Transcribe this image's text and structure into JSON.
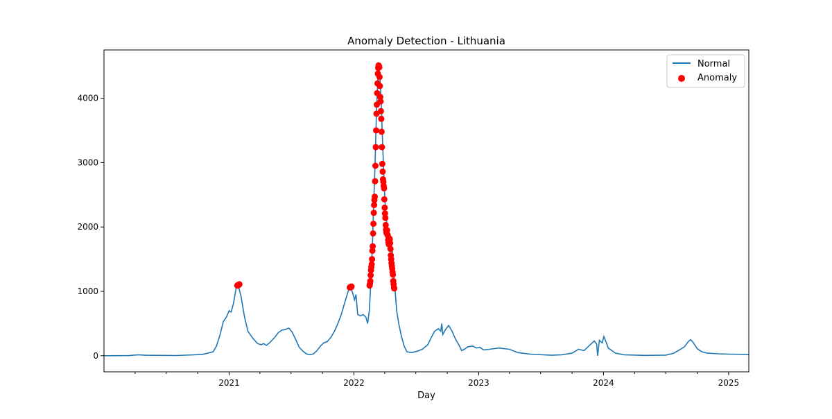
{
  "chart_data": {
    "type": "line",
    "title": "Anomaly Detection - Lithuania",
    "xlabel": "Day",
    "ylabel": "",
    "xlim": [
      "2020-01-01",
      "2025-03-01"
    ],
    "ylim": [
      -250,
      4750
    ],
    "x_ticks": [
      {
        "label": "2021",
        "date": "2021-01-01"
      },
      {
        "label": "2022",
        "date": "2022-01-01"
      },
      {
        "label": "2023",
        "date": "2023-01-01"
      },
      {
        "label": "2024",
        "date": "2024-01-01"
      },
      {
        "label": "2025",
        "date": "2025-01-01"
      }
    ],
    "y_ticks": [
      0,
      1000,
      2000,
      3000,
      4000
    ],
    "legend": {
      "placement": "top-right",
      "entries": [
        "Normal",
        "Anomaly"
      ]
    },
    "grid": false,
    "colors": {
      "line": "#1f77b4",
      "anomaly": "#ff0000"
    },
    "series": [
      {
        "name": "Normal",
        "kind": "line",
        "points": [
          [
            "2020-01-01",
            0
          ],
          [
            "2020-03-15",
            2
          ],
          [
            "2020-04-10",
            15
          ],
          [
            "2020-05-01",
            8
          ],
          [
            "2020-08-01",
            3
          ],
          [
            "2020-10-15",
            20
          ],
          [
            "2020-11-15",
            60
          ],
          [
            "2020-11-25",
            150
          ],
          [
            "2020-12-05",
            320
          ],
          [
            "2020-12-15",
            530
          ],
          [
            "2020-12-25",
            610
          ],
          [
            "2021-01-01",
            700
          ],
          [
            "2021-01-07",
            680
          ],
          [
            "2021-01-14",
            820
          ],
          [
            "2021-01-22",
            1060
          ],
          [
            "2021-01-28",
            1080
          ],
          [
            "2021-02-05",
            920
          ],
          [
            "2021-02-15",
            600
          ],
          [
            "2021-02-25",
            380
          ],
          [
            "2021-03-10",
            280
          ],
          [
            "2021-03-25",
            190
          ],
          [
            "2021-04-05",
            170
          ],
          [
            "2021-04-12",
            190
          ],
          [
            "2021-04-20",
            160
          ],
          [
            "2021-05-01",
            210
          ],
          [
            "2021-05-15",
            290
          ],
          [
            "2021-05-25",
            360
          ],
          [
            "2021-06-05",
            400
          ],
          [
            "2021-06-15",
            410
          ],
          [
            "2021-06-25",
            430
          ],
          [
            "2021-07-05",
            360
          ],
          [
            "2021-07-15",
            250
          ],
          [
            "2021-07-25",
            130
          ],
          [
            "2021-08-05",
            70
          ],
          [
            "2021-08-15",
            30
          ],
          [
            "2021-08-25",
            15
          ],
          [
            "2021-09-05",
            30
          ],
          [
            "2021-09-15",
            80
          ],
          [
            "2021-09-25",
            150
          ],
          [
            "2021-10-05",
            200
          ],
          [
            "2021-10-15",
            220
          ],
          [
            "2021-10-25",
            280
          ],
          [
            "2021-11-05",
            380
          ],
          [
            "2021-11-15",
            500
          ],
          [
            "2021-11-25",
            640
          ],
          [
            "2021-12-05",
            820
          ],
          [
            "2021-12-15",
            1000
          ],
          [
            "2021-12-22",
            1060
          ],
          [
            "2021-12-28",
            980
          ],
          [
            "2022-01-03",
            870
          ],
          [
            "2022-01-07",
            950
          ],
          [
            "2022-01-12",
            640
          ],
          [
            "2022-01-20",
            620
          ],
          [
            "2022-01-28",
            640
          ],
          [
            "2022-02-05",
            600
          ],
          [
            "2022-02-10",
            500
          ],
          [
            "2022-02-15",
            700
          ],
          [
            "2022-02-20",
            1200
          ],
          [
            "2022-02-24",
            1700
          ],
          [
            "2022-02-28",
            2400
          ],
          [
            "2022-03-04",
            3000
          ],
          [
            "2022-03-08",
            3800
          ],
          [
            "2022-03-12",
            4300
          ],
          [
            "2022-03-15",
            4500
          ],
          [
            "2022-03-18",
            4350
          ],
          [
            "2022-03-22",
            3900
          ],
          [
            "2022-03-26",
            3300
          ],
          [
            "2022-03-30",
            2700
          ],
          [
            "2022-04-03",
            2300
          ],
          [
            "2022-04-08",
            2000
          ],
          [
            "2022-04-13",
            1900
          ],
          [
            "2022-04-18",
            1800
          ],
          [
            "2022-04-23",
            1650
          ],
          [
            "2022-04-27",
            1300
          ],
          [
            "2022-05-01",
            1050
          ],
          [
            "2022-05-06",
            700
          ],
          [
            "2022-05-12",
            500
          ],
          [
            "2022-05-20",
            300
          ],
          [
            "2022-05-28",
            150
          ],
          [
            "2022-06-05",
            60
          ],
          [
            "2022-06-20",
            50
          ],
          [
            "2022-07-05",
            70
          ],
          [
            "2022-07-20",
            100
          ],
          [
            "2022-08-05",
            170
          ],
          [
            "2022-08-15",
            280
          ],
          [
            "2022-08-25",
            380
          ],
          [
            "2022-09-05",
            420
          ],
          [
            "2022-09-12",
            380
          ],
          [
            "2022-09-15",
            500
          ],
          [
            "2022-09-18",
            330
          ],
          [
            "2022-09-25",
            400
          ],
          [
            "2022-10-05",
            470
          ],
          [
            "2022-10-15",
            380
          ],
          [
            "2022-10-25",
            260
          ],
          [
            "2022-11-05",
            160
          ],
          [
            "2022-11-12",
            80
          ],
          [
            "2022-11-20",
            100
          ],
          [
            "2022-12-01",
            140
          ],
          [
            "2022-12-15",
            150
          ],
          [
            "2022-12-25",
            120
          ],
          [
            "2023-01-05",
            130
          ],
          [
            "2023-01-15",
            90
          ],
          [
            "2023-02-01",
            100
          ],
          [
            "2023-03-01",
            120
          ],
          [
            "2023-04-01",
            100
          ],
          [
            "2023-04-25",
            50
          ],
          [
            "2023-06-01",
            25
          ],
          [
            "2023-08-01",
            8
          ],
          [
            "2023-09-01",
            15
          ],
          [
            "2023-10-01",
            40
          ],
          [
            "2023-10-20",
            100
          ],
          [
            "2023-11-05",
            80
          ],
          [
            "2023-11-15",
            130
          ],
          [
            "2023-11-25",
            180
          ],
          [
            "2023-12-05",
            230
          ],
          [
            "2023-12-12",
            180
          ],
          [
            "2023-12-15",
            0
          ],
          [
            "2023-12-20",
            240
          ],
          [
            "2023-12-28",
            200
          ],
          [
            "2024-01-02",
            300
          ],
          [
            "2024-01-08",
            220
          ],
          [
            "2024-01-15",
            120
          ],
          [
            "2024-02-05",
            40
          ],
          [
            "2024-03-01",
            15
          ],
          [
            "2024-05-01",
            5
          ],
          [
            "2024-07-01",
            10
          ],
          [
            "2024-07-25",
            40
          ],
          [
            "2024-08-10",
            90
          ],
          [
            "2024-08-25",
            140
          ],
          [
            "2024-09-05",
            220
          ],
          [
            "2024-09-12",
            250
          ],
          [
            "2024-09-20",
            200
          ],
          [
            "2024-10-01",
            110
          ],
          [
            "2024-10-15",
            60
          ],
          [
            "2024-11-01",
            40
          ],
          [
            "2024-12-01",
            30
          ],
          [
            "2025-01-01",
            25
          ],
          [
            "2025-03-01",
            20
          ]
        ]
      },
      {
        "name": "Anomaly",
        "kind": "scatter",
        "points": [
          [
            "2021-01-25",
            1090
          ],
          [
            "2021-01-27",
            1100
          ],
          [
            "2021-01-28",
            1095
          ],
          [
            "2021-01-30",
            1105
          ],
          [
            "2021-01-31",
            1110
          ],
          [
            "2021-12-20",
            1060
          ],
          [
            "2021-12-22",
            1070
          ],
          [
            "2021-12-24",
            1065
          ],
          [
            "2021-12-25",
            1075
          ],
          [
            "2022-02-16",
            1090
          ],
          [
            "2022-02-17",
            1120
          ],
          [
            "2022-02-18",
            1160
          ],
          [
            "2022-02-19",
            1250
          ],
          [
            "2022-02-20",
            1330
          ],
          [
            "2022-02-21",
            1380
          ],
          [
            "2022-02-22",
            1420
          ],
          [
            "2022-02-23",
            1500
          ],
          [
            "2022-02-24",
            1630
          ],
          [
            "2022-02-25",
            1700
          ],
          [
            "2022-02-26",
            1900
          ],
          [
            "2022-02-27",
            2050
          ],
          [
            "2022-02-28",
            2220
          ],
          [
            "2022-03-01",
            2340
          ],
          [
            "2022-03-02",
            2420
          ],
          [
            "2022-03-03",
            2470
          ],
          [
            "2022-03-04",
            2710
          ],
          [
            "2022-03-05",
            2950
          ],
          [
            "2022-03-06",
            3240
          ],
          [
            "2022-03-07",
            3500
          ],
          [
            "2022-03-08",
            3760
          ],
          [
            "2022-03-09",
            3900
          ],
          [
            "2022-03-10",
            4080
          ],
          [
            "2022-03-11",
            4230
          ],
          [
            "2022-03-12",
            4380
          ],
          [
            "2022-03-13",
            4470
          ],
          [
            "2022-03-14",
            4510
          ],
          [
            "2022-03-15",
            4500
          ],
          [
            "2022-03-16",
            4480
          ],
          [
            "2022-03-17",
            4330
          ],
          [
            "2022-03-18",
            4190
          ],
          [
            "2022-03-19",
            4020
          ],
          [
            "2022-03-20",
            3950
          ],
          [
            "2022-03-21",
            3800
          ],
          [
            "2022-03-22",
            3680
          ],
          [
            "2022-03-23",
            3480
          ],
          [
            "2022-03-24",
            3240
          ],
          [
            "2022-03-25",
            2980
          ],
          [
            "2022-03-26",
            2860
          ],
          [
            "2022-03-27",
            2740
          ],
          [
            "2022-03-28",
            2700
          ],
          [
            "2022-03-29",
            2640
          ],
          [
            "2022-03-30",
            2600
          ],
          [
            "2022-03-31",
            2430
          ],
          [
            "2022-04-01",
            2300
          ],
          [
            "2022-04-02",
            2210
          ],
          [
            "2022-04-03",
            2140
          ],
          [
            "2022-04-04",
            2030
          ],
          [
            "2022-04-05",
            1960
          ],
          [
            "2022-04-06",
            1920
          ],
          [
            "2022-04-07",
            1900
          ],
          [
            "2022-04-08",
            1950
          ],
          [
            "2022-04-09",
            1880
          ],
          [
            "2022-04-10",
            1870
          ],
          [
            "2022-04-11",
            1800
          ],
          [
            "2022-04-12",
            1760
          ],
          [
            "2022-04-13",
            1730
          ],
          [
            "2022-04-14",
            1780
          ],
          [
            "2022-04-15",
            1820
          ],
          [
            "2022-04-16",
            1810
          ],
          [
            "2022-04-17",
            1750
          ],
          [
            "2022-04-18",
            1660
          ],
          [
            "2022-04-19",
            1560
          ],
          [
            "2022-04-20",
            1500
          ],
          [
            "2022-04-21",
            1440
          ],
          [
            "2022-04-22",
            1390
          ],
          [
            "2022-04-23",
            1350
          ],
          [
            "2022-04-24",
            1300
          ],
          [
            "2022-04-25",
            1260
          ],
          [
            "2022-04-26",
            1160
          ],
          [
            "2022-04-27",
            1110
          ],
          [
            "2022-04-28",
            1060
          ],
          [
            "2022-04-29",
            1045
          ]
        ]
      }
    ]
  }
}
